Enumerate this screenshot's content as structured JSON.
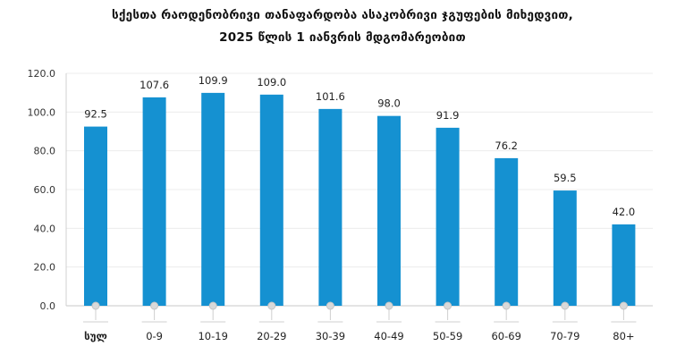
{
  "chart_data": {
    "type": "bar",
    "title_line1": "სქესთა რაოდენობრივი თანაფარდობა ასაკობრივი ჯგუფების მიხედვით,",
    "title_line2": "2025 წლის 1 იანვრის მდგომარეობით",
    "categories": [
      "სულ",
      "0-9",
      "10-19",
      "20-29",
      "30-39",
      "40-49",
      "50-59",
      "60-69",
      "70-79",
      "80+"
    ],
    "values": [
      92.5,
      107.6,
      109.9,
      109.0,
      101.6,
      98.0,
      91.9,
      76.2,
      59.5,
      42.0
    ],
    "value_labels": [
      "92.5",
      "107.6",
      "109.9",
      "109.0",
      "101.6",
      "98.0",
      "91.9",
      "76.2",
      "59.5",
      "42.0"
    ],
    "y_ticks": [
      "0.0",
      "20.0",
      "40.0",
      "60.0",
      "80.0",
      "100.0",
      "120.0"
    ],
    "ylim": [
      0,
      120
    ],
    "xlabel": "",
    "ylabel": "",
    "grid": true,
    "bar_color": "#1591d1",
    "first_category_bold": true
  }
}
